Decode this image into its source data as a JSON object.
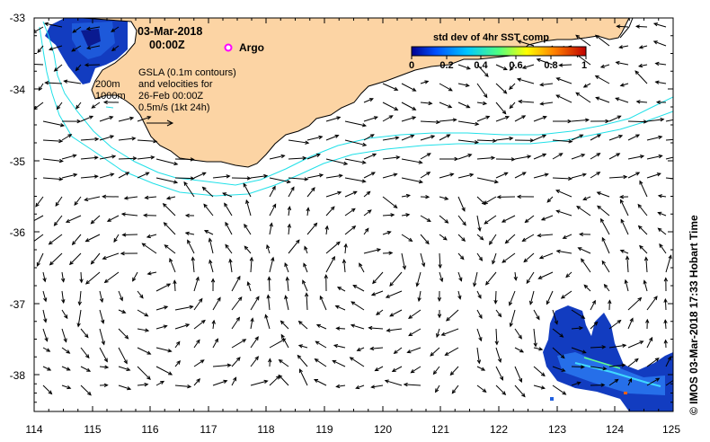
{
  "map": {
    "date": "03-Mar-2018",
    "time": "00:00Z",
    "argo_label": "Argo",
    "depth_labels": [
      "200m",
      "1000m"
    ],
    "gsla_lines": [
      "GSLA (0.1m contours)",
      "and velocities for",
      "26-Feb 00:00Z",
      "0.5m/s (1kt 24h)"
    ],
    "footer": "© IMOS 03-Mar-2018 17:33 Hobart Time",
    "lon_ticks": [
      "114",
      "115",
      "116",
      "117",
      "118",
      "119",
      "120",
      "121",
      "122",
      "123",
      "124",
      "125"
    ],
    "lat_ticks": [
      "-33",
      "-34",
      "-35",
      "-36",
      "-37",
      "-38"
    ],
    "colors": {
      "land": "#fcd4a4",
      "contour": "#20e0e8",
      "argo": "#ff00ff"
    }
  },
  "legend": {
    "title": "std dev of 4hr SST comp",
    "ticks": [
      "0",
      "0.2",
      "0.4",
      "0.6",
      "0.8",
      "1"
    ],
    "range": [
      0,
      1
    ],
    "colormap": [
      "#00008f",
      "#0050ff",
      "#00c8ff",
      "#50ff80",
      "#ffff00",
      "#ff8000",
      "#c00000"
    ]
  }
}
